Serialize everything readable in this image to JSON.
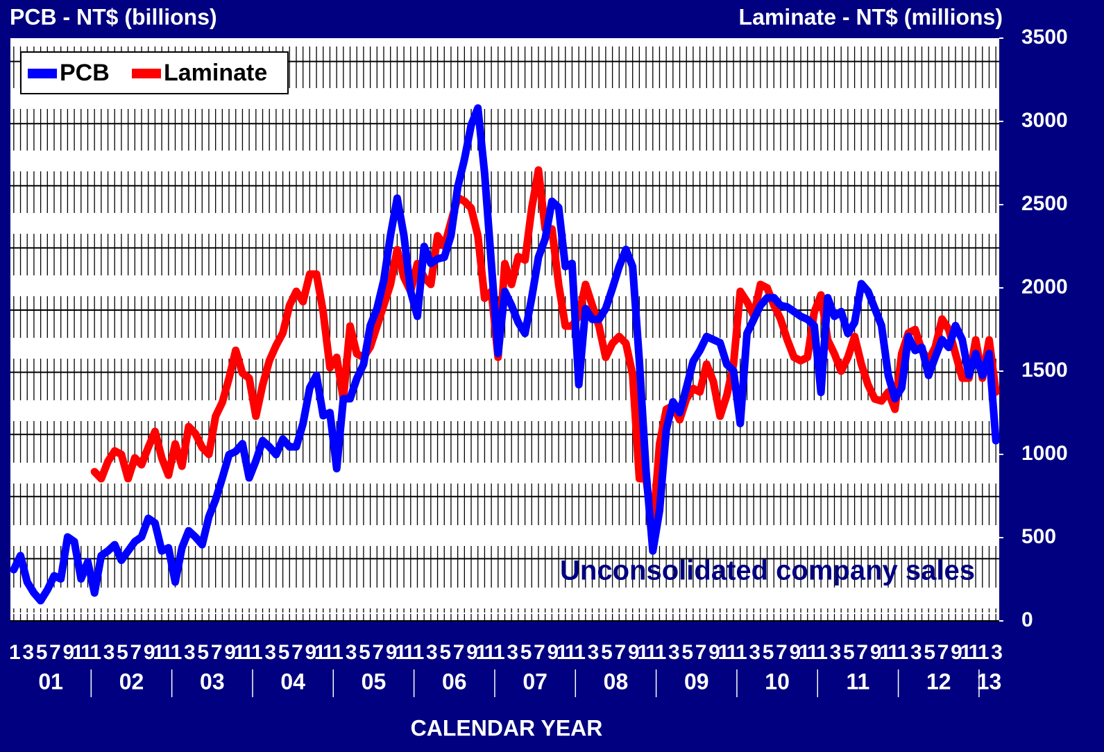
{
  "chart_data": {
    "type": "line",
    "title": "PCB - NT$ (billions)",
    "y2_label": "Laminate - NT$ (millions)",
    "xlabel": "CALENDAR YEAR",
    "annotation": "Unconsolidated company sales",
    "categories": [
      "1",
      null,
      "3",
      null,
      "5",
      null,
      "7",
      null,
      "9",
      null,
      "11",
      null,
      "1",
      null,
      "3",
      null,
      "5",
      null,
      "7",
      null,
      "9",
      null,
      "11",
      null,
      "1",
      null,
      "3",
      null,
      "5",
      null,
      "7",
      null,
      "9",
      null,
      "11",
      null,
      "1",
      null,
      "3",
      null,
      "5",
      null,
      "7",
      null,
      "9",
      null,
      "11",
      null,
      "1",
      null,
      "3",
      null,
      "5",
      null,
      "7",
      null,
      "9",
      null,
      "11",
      null,
      "1",
      null,
      "3",
      null,
      "5",
      null,
      "7",
      null,
      "9",
      null,
      "11",
      null,
      "1",
      null,
      "3",
      null,
      "5",
      null,
      "7",
      null,
      "9",
      null,
      "11",
      null,
      "1",
      null,
      "3",
      null,
      "5",
      null,
      "7",
      null,
      "9",
      null,
      "11",
      null,
      "1",
      null,
      "3",
      null,
      "5",
      null,
      "7",
      null,
      "9",
      null,
      "11",
      null,
      "1",
      null,
      "3",
      null,
      "5",
      null,
      "7",
      null,
      "9",
      null,
      "11",
      null,
      "1",
      null,
      "3",
      null,
      "5",
      null,
      "7",
      null,
      "9",
      null,
      "11",
      null,
      "1",
      null,
      "3",
      null,
      "5",
      null,
      "7",
      null,
      "9",
      null,
      "11",
      null,
      "1",
      null,
      "3"
    ],
    "years": [
      "01",
      "02",
      "03",
      "04",
      "05",
      "06",
      "07",
      "08",
      "09",
      "10",
      "11",
      "12",
      "13"
    ],
    "series": [
      {
        "name": "PCB",
        "color": "#0000ff",
        "axis": "y",
        "values": [
          3.3,
          4.2,
          2.5,
          1.8,
          1.3,
          2.0,
          2.9,
          2.7,
          5.4,
          5.1,
          2.7,
          3.8,
          1.8,
          4.2,
          4.5,
          4.9,
          3.9,
          4.5,
          5.1,
          5.4,
          6.6,
          6.3,
          4.5,
          4.7,
          2.5,
          4.7,
          5.8,
          5.4,
          4.9,
          6.7,
          7.8,
          9.2,
          10.7,
          10.9,
          11.4,
          9.2,
          10.3,
          11.6,
          11.2,
          10.7,
          11.7,
          11.2,
          11.2,
          12.7,
          15.0,
          15.8,
          13.2,
          13.4,
          9.8,
          14.3,
          14.3,
          15.6,
          16.5,
          19.0,
          20.1,
          21.9,
          24.8,
          27.2,
          24.8,
          21.2,
          19.6,
          24.1,
          23.0,
          23.3,
          23.4,
          24.8,
          27.9,
          29.7,
          31.9,
          33.0,
          28.8,
          23.0,
          17.2,
          21.2,
          20.3,
          19.2,
          18.5,
          20.8,
          23.4,
          24.6,
          27.0,
          26.6,
          22.8,
          23.0,
          15.2,
          20.1,
          19.4,
          19.4,
          20.1,
          21.4,
          22.8,
          23.9,
          22.8,
          16.7,
          9.6,
          4.5,
          7.1,
          12.3,
          14.1,
          13.4,
          15.0,
          16.7,
          17.4,
          18.3,
          18.1,
          17.9,
          16.5,
          16.1,
          12.7,
          18.5,
          19.4,
          20.3,
          20.8,
          20.8,
          20.3,
          20.2,
          19.9,
          19.6,
          19.4,
          19.0,
          14.7,
          20.8,
          19.6,
          19.9,
          18.5,
          19.2,
          21.7,
          21.2,
          20.1,
          19.0,
          15.8,
          14.3,
          15.0,
          18.3,
          17.4,
          17.6,
          15.8,
          17.0,
          18.1,
          17.6,
          19.0,
          18.1,
          15.8,
          17.2,
          15.8,
          17.2,
          11.6
        ]
      },
      {
        "name": "Laminate",
        "color": "#ff0000",
        "axis": "y2",
        "values": [
          null,
          null,
          null,
          null,
          null,
          null,
          null,
          null,
          null,
          null,
          null,
          null,
          896,
          854,
          958,
          1021,
          1000,
          854,
          979,
          938,
          1042,
          1138,
          979,
          875,
          1063,
          929,
          1167,
          1125,
          1042,
          1000,
          1229,
          1313,
          1458,
          1625,
          1488,
          1458,
          1229,
          1417,
          1563,
          1654,
          1729,
          1896,
          1979,
          1917,
          2083,
          2083,
          1854,
          1521,
          1583,
          1333,
          1771,
          1604,
          1583,
          1646,
          1771,
          1896,
          2021,
          2229,
          2063,
          1979,
          2146,
          2063,
          2021,
          2313,
          2250,
          2396,
          2542,
          2521,
          2479,
          2313,
          1938,
          1979,
          1583,
          2146,
          2021,
          2188,
          2167,
          2479,
          2708,
          2354,
          2354,
          2021,
          1771,
          1771,
          1833,
          2021,
          1896,
          1771,
          1583,
          1667,
          1708,
          1667,
          1479,
          854,
          854,
          542,
          1063,
          1271,
          1292,
          1208,
          1333,
          1396,
          1375,
          1542,
          1438,
          1229,
          1354,
          1542,
          1979,
          1917,
          1833,
          2021,
          2000,
          1896,
          1813,
          1688,
          1583,
          1563,
          1583,
          1854,
          1958,
          1688,
          1604,
          1500,
          1583,
          1708,
          1542,
          1417,
          1333,
          1321,
          1375,
          1271,
          1604,
          1729,
          1750,
          1625,
          1563,
          1646,
          1813,
          1750,
          1604,
          1458,
          1458,
          1688,
          1458,
          1688,
          1375
        ]
      }
    ],
    "ylim": [
      0,
      37.5
    ],
    "yticks": [
      0,
      4,
      8,
      12,
      16,
      20,
      24,
      28,
      32,
      36
    ],
    "y2lim": [
      0,
      3500
    ],
    "y2ticks": [
      0,
      500,
      1000,
      1500,
      2000,
      2500,
      3000,
      3500
    ],
    "grid": true,
    "legend": "upper left"
  }
}
